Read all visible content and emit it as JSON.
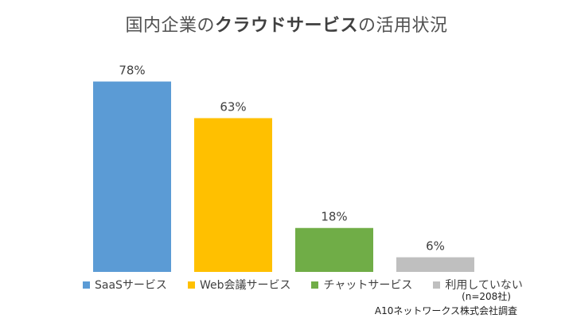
{
  "title": {
    "prefix": "国内企業の",
    "emphasis": "クラウドサービス",
    "suffix": "の活用状況"
  },
  "sample_note": "(n=208社)",
  "source_note": "A10ネットワークス株式会社調査",
  "chart_data": {
    "type": "bar",
    "categories": [
      "SaaSサービス",
      "Web会議サービス",
      "チャットサービス",
      "利用していない"
    ],
    "values": [
      78,
      63,
      18,
      6
    ],
    "value_labels": [
      "78%",
      "63%",
      "18%",
      "6%"
    ],
    "colors": [
      "#5b9bd5",
      "#ffc000",
      "#70ad47",
      "#bfbfbf"
    ],
    "ylim": [
      0,
      100
    ],
    "grid": false,
    "legend_position": "bottom"
  }
}
